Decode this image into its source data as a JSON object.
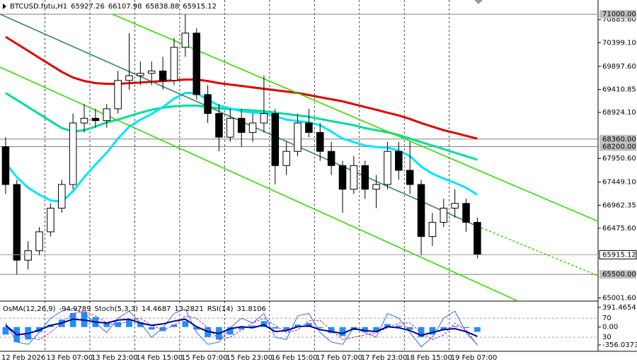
{
  "chart_data": [
    {
      "type": "candlestick",
      "symbol": "BTCUSD.futu,H1",
      "last_bar": {
        "open": 65927.26,
        "high": 66107.98,
        "low": 65838.88,
        "close": 65915.12
      },
      "x": [
        2,
        6,
        10,
        14,
        18,
        22,
        26,
        30,
        34,
        38,
        42,
        46,
        50,
        54,
        58,
        62,
        66,
        70,
        74,
        78,
        82,
        86,
        90,
        94,
        98,
        102,
        106,
        110,
        114,
        118,
        122,
        126,
        130,
        134,
        138,
        142,
        146,
        150,
        154,
        158,
        162,
        166,
        170
      ],
      "open": [
        68200,
        67400,
        65800,
        66000,
        66400,
        66900,
        67400,
        68700,
        68800,
        68750,
        69000,
        69600,
        69700,
        69750,
        69800,
        69600,
        70300,
        70600,
        69300,
        68900,
        68400,
        68800,
        68500,
        68700,
        68900,
        67800,
        68100,
        68700,
        68500,
        68100,
        67800,
        67300,
        67800,
        67300,
        67400,
        68100,
        67700,
        67400,
        66300,
        66600,
        66900,
        67000,
        66600
      ],
      "high": [
        68400,
        67500,
        66200,
        66500,
        67000,
        67500,
        68900,
        69100,
        69000,
        69100,
        69800,
        70600,
        70000,
        70000,
        70100,
        70500,
        71000,
        70700,
        69500,
        69100,
        69000,
        69000,
        68900,
        69700,
        69000,
        68300,
        68900,
        69000,
        68700,
        68300,
        67900,
        68000,
        67900,
        67600,
        68300,
        68300,
        68300,
        67500,
        66800,
        67100,
        67300,
        67100,
        66700
      ],
      "low": [
        67200,
        65500,
        65600,
        65900,
        66300,
        66800,
        67300,
        68500,
        68600,
        68600,
        68900,
        69400,
        69500,
        69500,
        69400,
        69500,
        70100,
        69200,
        68700,
        68100,
        68300,
        68200,
        68300,
        68500,
        67400,
        67600,
        68000,
        68400,
        67900,
        67600,
        66800,
        67200,
        67100,
        66900,
        67300,
        67500,
        67200,
        65900,
        66100,
        66500,
        66700,
        66400,
        65838.88
      ],
      "close": [
        67400,
        65800,
        66000,
        66400,
        66900,
        67400,
        68700,
        68800,
        68750,
        69000,
        69600,
        69700,
        69750,
        69800,
        69600,
        70300,
        70600,
        69300,
        68900,
        68400,
        68800,
        68500,
        68700,
        68900,
        67800,
        68100,
        68700,
        68500,
        68100,
        67800,
        67300,
        67800,
        67300,
        67400,
        68100,
        67700,
        67400,
        66300,
        66600,
        66900,
        67000,
        66600,
        65915.12
      ],
      "bull_color": "#ffffff",
      "bear_color": "#000000",
      "wick_color": "#000000",
      "series": [
        {
          "color": "#e00000",
          "values": [
            70522,
            70374,
            70225,
            70077,
            69928,
            69780,
            69661,
            69587,
            69543,
            69528,
            69528,
            69543,
            69557,
            69572,
            69587,
            69602,
            69617,
            69617,
            69587,
            69543,
            69513,
            69483,
            69453,
            69424,
            69394,
            69365,
            69335,
            69290,
            69246,
            69201,
            69157,
            69097,
            69038,
            68979,
            68919,
            68860,
            68786,
            68697,
            68622,
            68548,
            68489,
            68429,
            68370
          ]
        },
        {
          "color": "#00dd99",
          "values": [
            69335,
            69186,
            69038,
            68890,
            68741,
            68593,
            68519,
            68548,
            68622,
            68712,
            68771,
            68845,
            68919,
            68979,
            69023,
            69053,
            69068,
            69068,
            69038,
            69008,
            68993,
            68979,
            68964,
            68949,
            68919,
            68890,
            68860,
            68830,
            68786,
            68741,
            68697,
            68652,
            68593,
            68548,
            68504,
            68444,
            68370,
            68296,
            68222,
            68148,
            68073,
            67999,
            67925
          ]
        },
        {
          "color": "#00e5ff",
          "values": [
            67851,
            67554,
            67331,
            67183,
            67064,
            67035,
            67257,
            67554,
            67821,
            68073,
            68370,
            68622,
            68771,
            68890,
            69038,
            69216,
            69335,
            69335,
            69186,
            69068,
            69008,
            68949,
            68919,
            68919,
            68845,
            68771,
            68741,
            68712,
            68652,
            68519,
            68370,
            68296,
            68222,
            68192,
            68177,
            68118,
            67999,
            67777,
            67629,
            67525,
            67436,
            67331,
            67183
          ]
        }
      ],
      "trendlines": [
        {
          "x": [
            40,
            213
          ],
          "values": [
            71001,
            66621
          ],
          "color": "#33dd00"
        },
        {
          "x": [
            0,
            184
          ],
          "values": [
            69880,
            64947
          ],
          "color": "#33dd00"
        },
        {
          "x": [
            0,
            170
          ],
          "values": [
            71001,
            66517
          ],
          "color": "#2e8b57"
        },
        {
          "x": [
            170,
            213
          ],
          "values": [
            66517,
            65470
          ],
          "color": "#33dd00",
          "dash": true
        }
      ],
      "levels": [
        {
          "value": 71000,
          "label": "71000.00"
        },
        {
          "value": 68360,
          "label": "68360.00"
        },
        {
          "value": 68200,
          "label": "68200.00"
        },
        {
          "value": 65500,
          "label": "65500.00"
        }
      ],
      "xlim": [
        0,
        213
      ],
      "ylim": [
        64950,
        71300
      ],
      "xticks": [
        {
          "value": 0,
          "label": "12 Feb 2026"
        },
        {
          "value": 16,
          "label": "13 Feb 07:00"
        },
        {
          "value": 32,
          "label": "13 Feb 23:00"
        },
        {
          "value": 48,
          "label": "14 Feb 15:00"
        },
        {
          "value": 64,
          "label": "15 Feb 07:00"
        },
        {
          "value": 80,
          "label": "15 Feb 23:00"
        },
        {
          "value": 96,
          "label": "16 Feb 15:00"
        },
        {
          "value": 112,
          "label": "17 Feb 07:00"
        },
        {
          "value": 128,
          "label": "17 Feb 23:00"
        },
        {
          "value": 144,
          "label": "18 Feb 15:00"
        },
        {
          "value": 160,
          "label": "19 Feb 07:00"
        }
      ],
      "yticks": [
        {
          "value": 65001.6,
          "label": "65001.60"
        },
        {
          "value": 66475.6,
          "label": "66475.60"
        },
        {
          "value": 66962.35,
          "label": "66962.35"
        },
        {
          "value": 67449.1,
          "label": "67449.10"
        },
        {
          "value": 67950.6,
          "label": "67950.60"
        },
        {
          "value": 68924.1,
          "label": "68924.10"
        },
        {
          "value": 69410.85,
          "label": "69410.85"
        },
        {
          "value": 69897.6,
          "label": "69897.60"
        },
        {
          "value": 70399.1,
          "label": "70399.10"
        },
        {
          "value": 70885.6,
          "label": "70885.60"
        }
      ]
    },
    {
      "type": "oscillator",
      "x": [
        2,
        6,
        10,
        14,
        18,
        22,
        26,
        30,
        34,
        38,
        42,
        46,
        50,
        54,
        58,
        62,
        66,
        70,
        74,
        78,
        82,
        86,
        90,
        94,
        98,
        102,
        106,
        110,
        114,
        118,
        122,
        126,
        130,
        134,
        138,
        142,
        146,
        150,
        154,
        158,
        162,
        166,
        170
      ],
      "series": [
        {
          "name": "OsMA(12,26,9)",
          "style": "histogram",
          "color": "#1e90ff",
          "values": [
            -150,
            -300,
            -250,
            -100,
            50,
            150,
            280,
            300,
            200,
            80,
            100,
            150,
            100,
            -50,
            -80,
            50,
            120,
            -50,
            -200,
            -250,
            -150,
            -50,
            30,
            120,
            -30,
            -80,
            50,
            80,
            -20,
            -120,
            -180,
            -60,
            -100,
            -80,
            60,
            30,
            -50,
            -200,
            -150,
            -50,
            20,
            -20,
            -94.9789
          ]
        },
        {
          "name": "Stoch(5,3,3)",
          "color": "#4169e1",
          "axis": "y2",
          "values": [
            60,
            20,
            15,
            40,
            70,
            85,
            90,
            80,
            60,
            40,
            70,
            85,
            60,
            30,
            50,
            80,
            90,
            40,
            15,
            20,
            50,
            70,
            60,
            80,
            30,
            25,
            75,
            80,
            40,
            20,
            15,
            50,
            40,
            30,
            80,
            70,
            40,
            10,
            30,
            70,
            85,
            40,
            14.4687
          ]
        },
        {
          "color": "#c71585",
          "axis": "y2",
          "dash": true,
          "values": [
            55,
            40,
            30,
            25,
            40,
            60,
            80,
            85,
            75,
            60,
            55,
            65,
            70,
            55,
            45,
            55,
            75,
            70,
            50,
            25,
            30,
            45,
            60,
            70,
            55,
            40,
            45,
            65,
            65,
            45,
            25,
            30,
            35,
            40,
            50,
            60,
            60,
            40,
            25,
            35,
            60,
            45,
            13.2821
          ]
        },
        {
          "name": "RSI(14)",
          "color": "#00008b",
          "axis": "y2",
          "width": 2,
          "values": [
            55,
            35,
            38,
            45,
            55,
            60,
            68,
            66,
            62,
            60,
            66,
            68,
            60,
            55,
            58,
            64,
            68,
            52,
            42,
            38,
            48,
            52,
            50,
            56,
            42,
            44,
            52,
            54,
            46,
            42,
            38,
            48,
            44,
            42,
            52,
            50,
            44,
            34,
            40,
            46,
            48,
            42,
            31.8106
          ]
        }
      ],
      "xlim": [
        0,
        213
      ],
      "ylim": [
        -469,
        490
      ],
      "yticks": [
        391.4654,
        {
          "value": 0,
          "label": "0.00"
        },
        -356.0373
      ],
      "y2lim": [
        2,
        103
      ],
      "y2ticks": [
        70,
        30
      ]
    }
  ]
}
